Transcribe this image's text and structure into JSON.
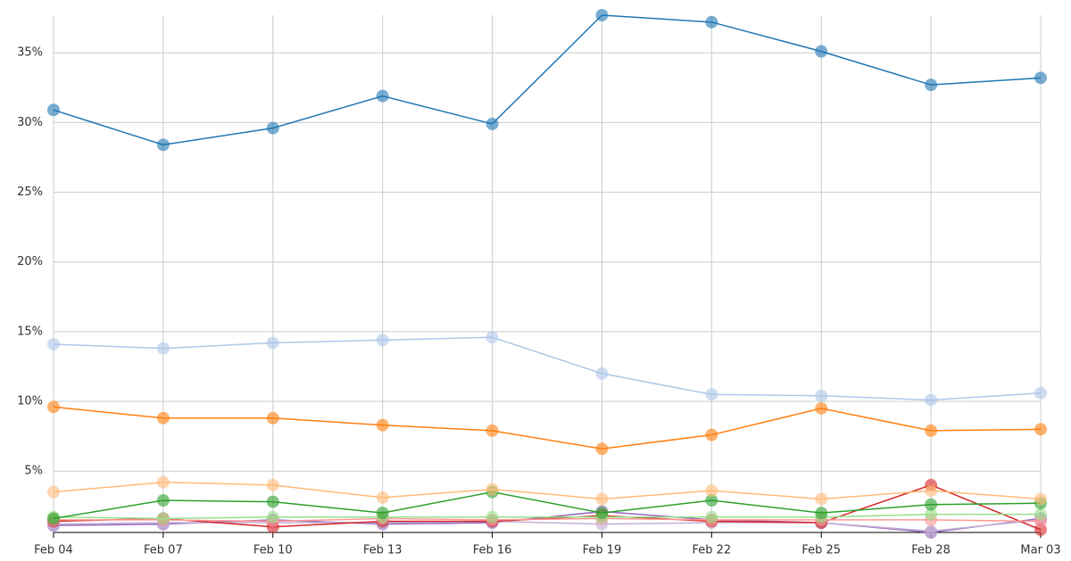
{
  "chart_data": {
    "type": "line",
    "categories": [
      "Feb 04",
      "Feb 07",
      "Feb 10",
      "Feb 13",
      "Feb 16",
      "Feb 19",
      "Feb 22",
      "Feb 25",
      "Feb 28",
      "Mar 03"
    ],
    "series": [
      {
        "color": "#1f77b4",
        "values": [
          30.9,
          28.4,
          29.6,
          31.9,
          29.9,
          37.7,
          37.2,
          35.1,
          32.7,
          33.2
        ]
      },
      {
        "color": "#aec7e8",
        "values": [
          14.1,
          13.8,
          14.2,
          14.4,
          14.6,
          12.0,
          10.5,
          10.4,
          10.1,
          10.6
        ]
      },
      {
        "color": "#ff7f0e",
        "values": [
          9.6,
          8.8,
          8.8,
          8.3,
          7.9,
          6.6,
          7.6,
          9.5,
          7.9,
          8.0
        ]
      },
      {
        "color": "#ffbb78",
        "values": [
          3.5,
          4.2,
          4.0,
          3.1,
          3.7,
          3.0,
          3.6,
          3.0,
          3.6,
          3.0
        ]
      },
      {
        "color": "#2ca02c",
        "values": [
          1.6,
          2.9,
          2.8,
          2.0,
          3.5,
          2.0,
          2.9,
          2.0,
          2.6,
          2.7
        ]
      },
      {
        "color": "#98df8a",
        "values": [
          1.7,
          1.6,
          1.7,
          1.7,
          1.7,
          1.7,
          1.7,
          1.7,
          1.9,
          1.9
        ]
      },
      {
        "color": "#ff9896",
        "values": [
          1.5,
          1.5,
          1.4,
          1.6,
          1.5,
          1.6,
          1.5,
          1.5,
          1.5,
          1.4
        ]
      },
      {
        "color": "#d62728",
        "values": [
          1.4,
          1.6,
          1.0,
          1.4,
          1.4,
          1.8,
          1.4,
          1.3,
          4.0,
          0.8
        ]
      },
      {
        "color": "#c5b0d5",
        "values": [
          1.2,
          1.3,
          1.3,
          1.3,
          1.4,
          1.2,
          1.3,
          1.3,
          0.7,
          1.5
        ]
      },
      {
        "color": "#9467bd",
        "values": [
          1.1,
          1.2,
          1.5,
          1.2,
          1.3,
          2.1,
          1.5,
          1.3,
          0.6,
          1.6
        ]
      }
    ],
    "ylim": [
      0.6,
      37.7
    ],
    "yticks": [
      {
        "value": 5,
        "label": "5%"
      },
      {
        "value": 10,
        "label": "10%"
      },
      {
        "value": 15,
        "label": "15%"
      },
      {
        "value": 20,
        "label": "20%"
      },
      {
        "value": 25,
        "label": "25%"
      },
      {
        "value": 30,
        "label": "30%"
      },
      {
        "value": 35,
        "label": "35%"
      }
    ],
    "grid": true
  }
}
